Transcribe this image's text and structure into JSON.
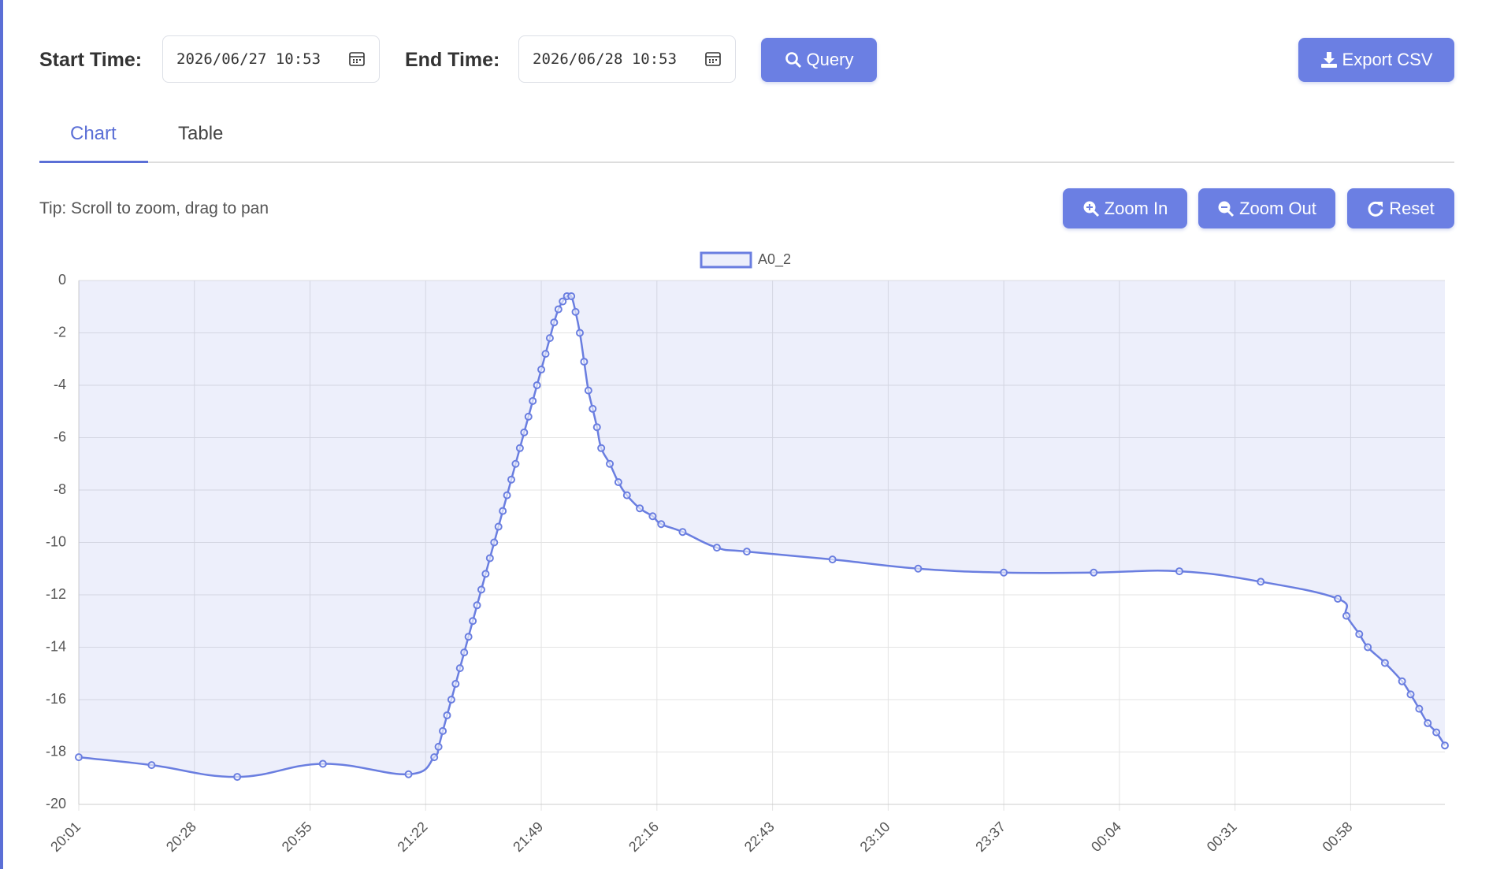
{
  "header": {
    "start_label": "Start Time:",
    "start_value": "2026/06/27 10:53",
    "end_label": "End Time:",
    "end_value": "2026/06/28 10:53",
    "query_button": "Query",
    "export_button": "Export CSV"
  },
  "tabs": [
    "Chart",
    "Table"
  ],
  "tip": "Tip: Scroll to zoom, drag to pan",
  "zoom_buttons": [
    "Zoom In",
    "Zoom Out",
    "Reset"
  ],
  "chart_data": {
    "type": "line",
    "xlim": [
      "20:01",
      "01:20"
    ],
    "xticks": [
      "20:01",
      "20:28",
      "20:55",
      "21:22",
      "21:49",
      "22:16",
      "22:43",
      "23:10",
      "23:37",
      "00:04",
      "00:31",
      "00:58"
    ],
    "ylim": [
      -20,
      0
    ],
    "yticks": [
      0,
      -2,
      -4,
      -6,
      -8,
      -10,
      -12,
      -14,
      -16,
      -18,
      -20
    ],
    "grid": true,
    "x": [
      "20:01",
      "20:18",
      "20:38",
      "20:58",
      "21:18",
      "21:24",
      "21:25",
      "21:26",
      "21:27",
      "21:28",
      "21:29",
      "21:30",
      "21:31",
      "21:32",
      "21:33",
      "21:34",
      "21:35",
      "21:36",
      "21:37",
      "21:38",
      "21:39",
      "21:40",
      "21:41",
      "21:42",
      "21:43",
      "21:44",
      "21:45",
      "21:46",
      "21:47",
      "21:48",
      "21:49",
      "21:50",
      "21:51",
      "21:52",
      "21:53",
      "21:54",
      "21:55",
      "21:56",
      "21:57",
      "21:58",
      "21:59",
      "22:00",
      "22:01",
      "22:02",
      "22:03",
      "22:05",
      "22:07",
      "22:09",
      "22:12",
      "22:15",
      "22:17",
      "22:22",
      "22:30",
      "22:37",
      "22:57",
      "23:17",
      "23:37",
      "23:58",
      "00:18",
      "00:37",
      "00:55",
      "00:57",
      "01:00",
      "01:02",
      "01:06",
      "01:10",
      "01:12",
      "01:14",
      "01:16",
      "01:18",
      "01:20"
    ],
    "series": [
      {
        "name": "A0_2",
        "color": "#6a7ee0",
        "values": [
          -18.2,
          -18.5,
          -18.95,
          -18.45,
          -18.85,
          -18.2,
          -17.8,
          -17.2,
          -16.6,
          -16.0,
          -15.4,
          -14.8,
          -14.2,
          -13.6,
          -13.0,
          -12.4,
          -11.8,
          -11.2,
          -10.6,
          -10.0,
          -9.4,
          -8.8,
          -8.2,
          -7.6,
          -7.0,
          -6.4,
          -5.8,
          -5.2,
          -4.6,
          -4.0,
          -3.4,
          -2.8,
          -2.2,
          -1.6,
          -1.1,
          -0.8,
          -0.6,
          -0.6,
          -1.2,
          -2.0,
          -3.1,
          -4.2,
          -4.9,
          -5.6,
          -6.4,
          -7.0,
          -7.7,
          -8.2,
          -8.7,
          -9.0,
          -9.3,
          -9.6,
          -10.2,
          -10.35,
          -10.65,
          -11.0,
          -11.15,
          -11.15,
          -11.1,
          -11.5,
          -12.15,
          -12.8,
          -13.5,
          -14.0,
          -14.6,
          -15.3,
          -15.8,
          -16.35,
          -16.9,
          -17.25,
          -17.75
        ]
      }
    ]
  }
}
